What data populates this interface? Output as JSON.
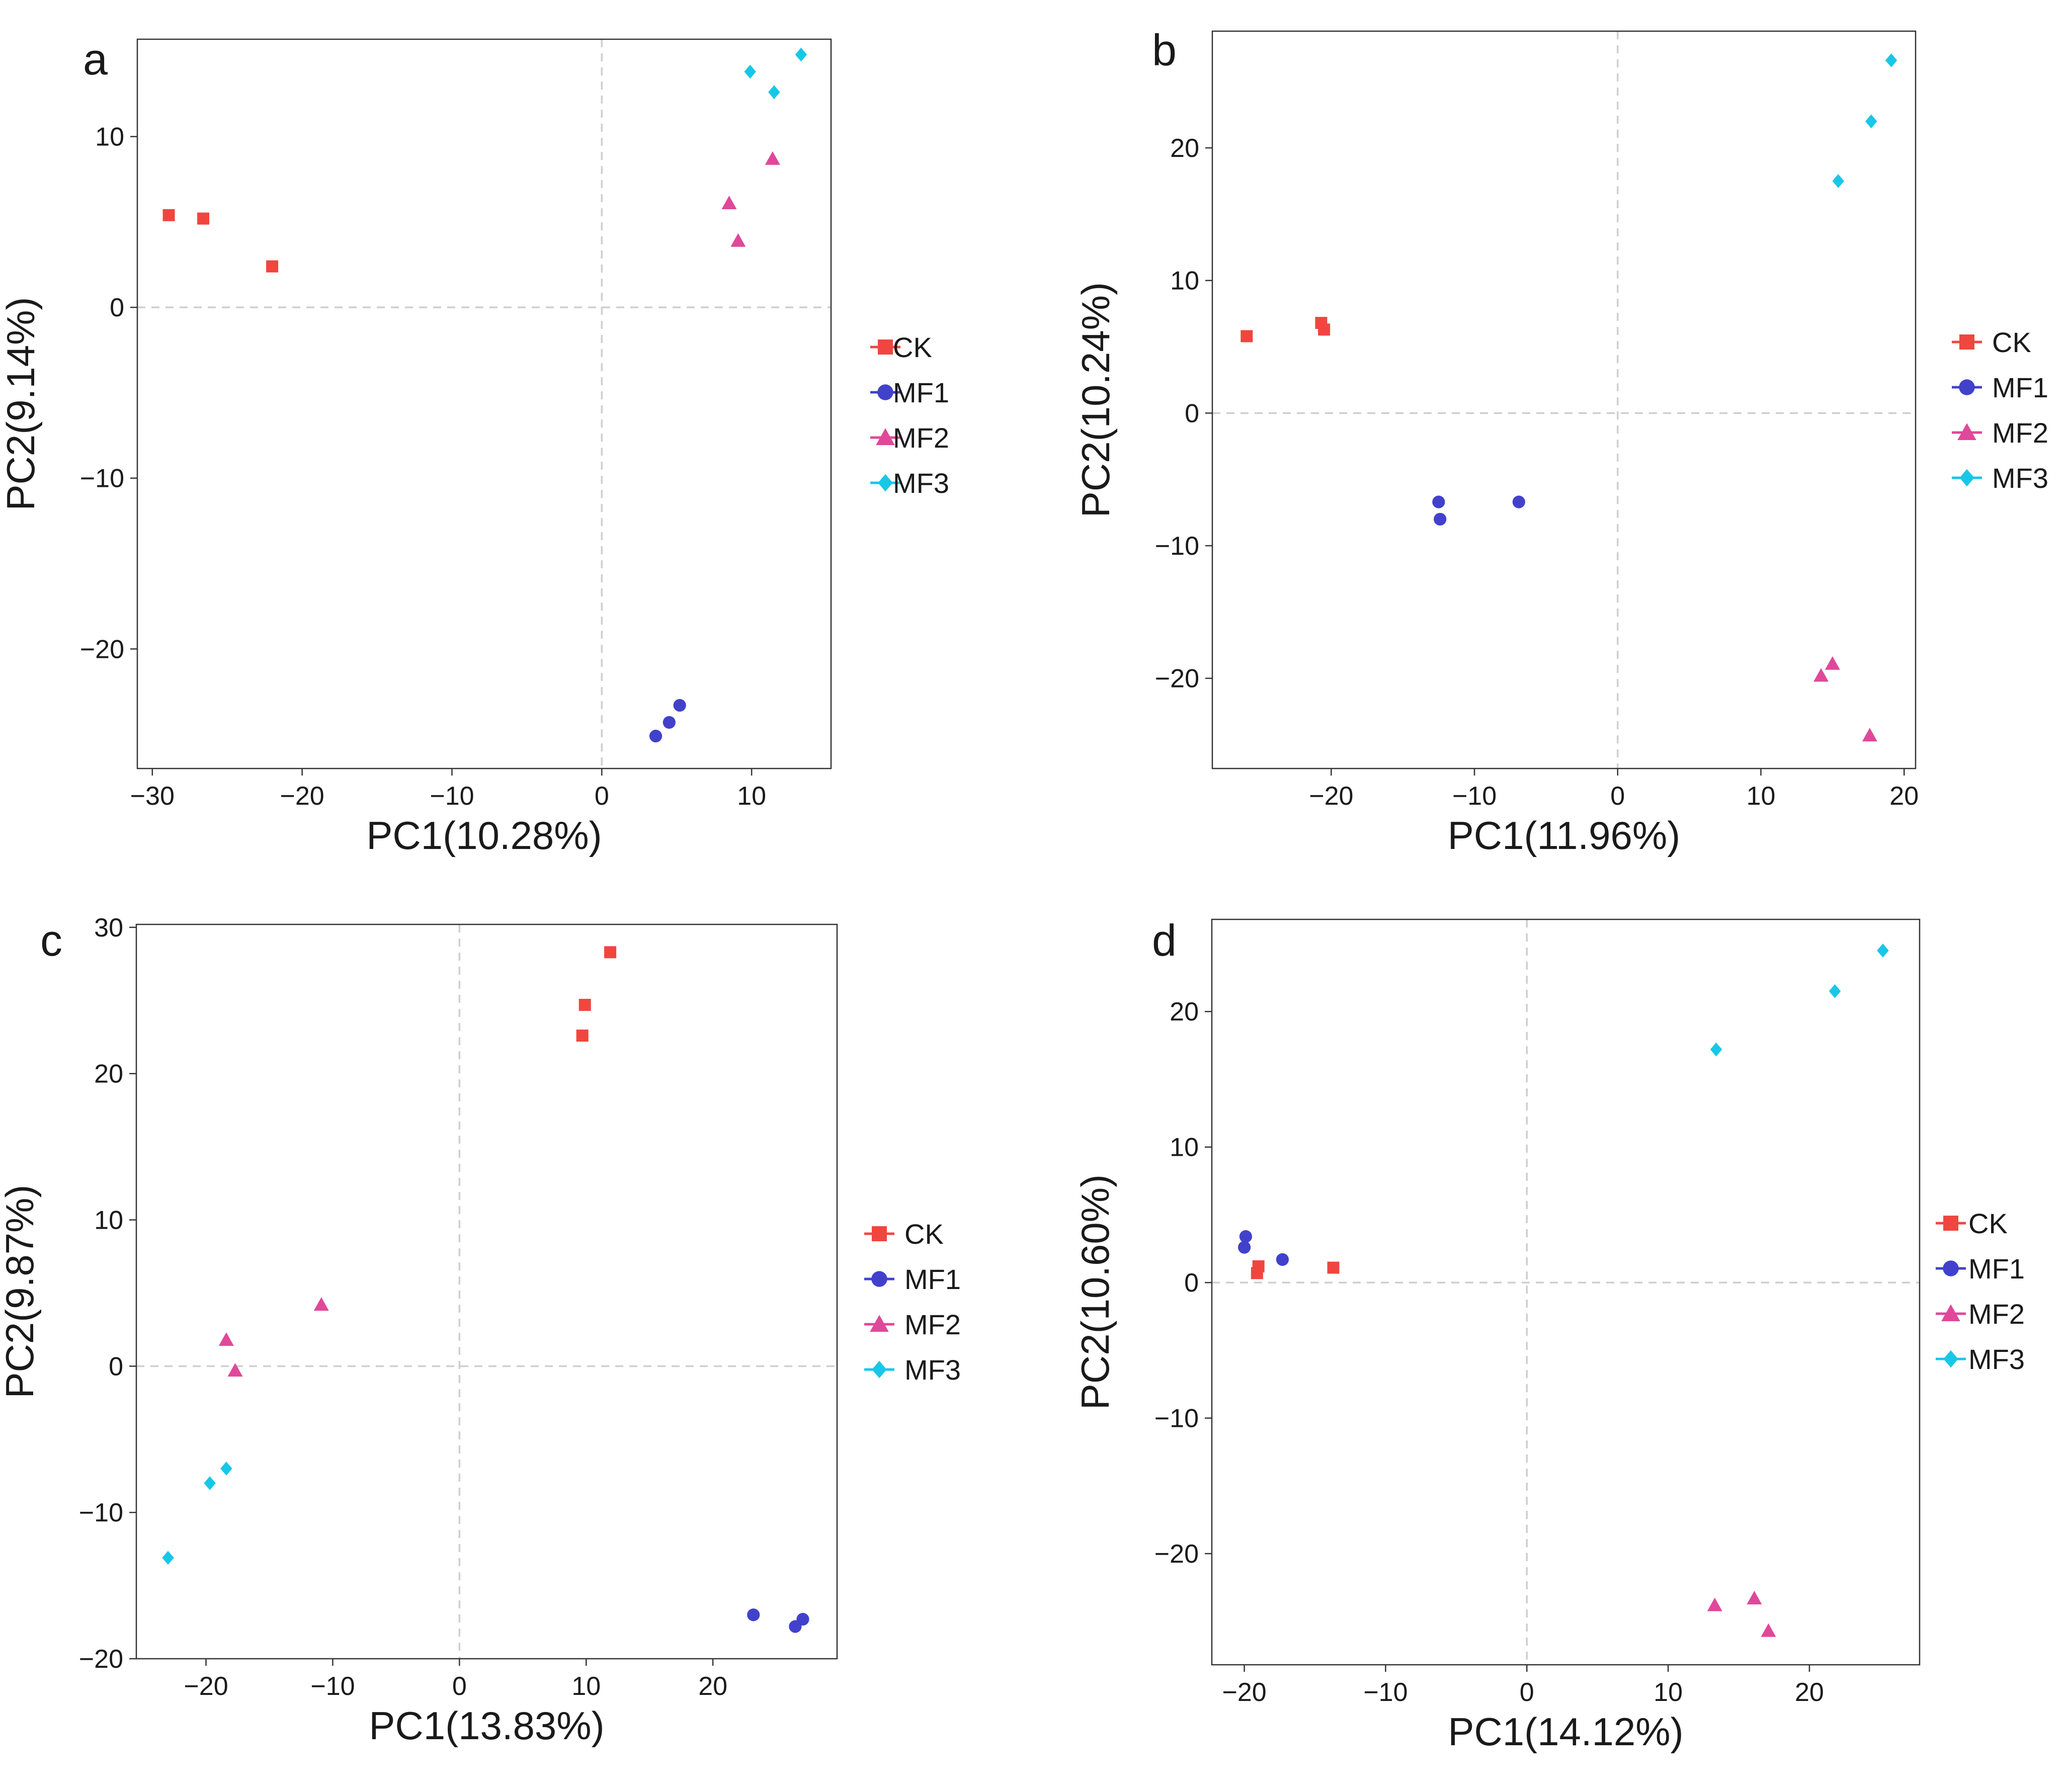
{
  "chart_data": [
    {
      "type": "scatter",
      "panel": "a",
      "xlabel": "PC1(10.28%)",
      "ylabel": "PC2(9.14%)",
      "xlim": [
        -31,
        15.3
      ],
      "ylim": [
        -27,
        15.7
      ],
      "xticks": [
        -30,
        -20,
        -10,
        0,
        10
      ],
      "yticks": [
        10,
        0,
        -10,
        -20
      ],
      "series": [
        {
          "name": "CK",
          "marker": "square",
          "color": "#f0463f",
          "points": [
            [
              -28.9,
              5.4
            ],
            [
              -26.6,
              5.2
            ],
            [
              -22.0,
              2.4
            ]
          ]
        },
        {
          "name": "MF1",
          "marker": "circle",
          "color": "#4141cc",
          "points": [
            [
              3.6,
              -25.1
            ],
            [
              4.5,
              -24.3
            ],
            [
              5.2,
              -23.3
            ]
          ]
        },
        {
          "name": "MF2",
          "marker": "triangle",
          "color": "#e0489a",
          "points": [
            [
              8.5,
              6.1
            ],
            [
              9.1,
              3.9
            ],
            [
              11.4,
              8.7
            ]
          ]
        },
        {
          "name": "MF3",
          "marker": "diamond",
          "color": "#17c7e8",
          "points": [
            [
              9.9,
              13.8
            ],
            [
              11.5,
              12.6
            ],
            [
              13.3,
              14.8
            ]
          ]
        }
      ]
    },
    {
      "type": "scatter",
      "panel": "b",
      "xlabel": "PC1(11.96%)",
      "ylabel": "PC2(10.24%)",
      "xlim": [
        -28.3,
        20.8
      ],
      "ylim": [
        -26.8,
        28.8
      ],
      "xticks": [
        -20,
        -10,
        0,
        10,
        20
      ],
      "yticks": [
        20,
        10,
        0,
        -10,
        -20
      ],
      "series": [
        {
          "name": "CK",
          "marker": "square",
          "color": "#f0463f",
          "points": [
            [
              -25.9,
              5.8
            ],
            [
              -20.7,
              6.8
            ],
            [
              -20.5,
              6.3
            ]
          ]
        },
        {
          "name": "MF1",
          "marker": "circle",
          "color": "#4141cc",
          "points": [
            [
              -12.5,
              -6.7
            ],
            [
              -12.4,
              -8.0
            ],
            [
              -6.9,
              -6.7
            ]
          ]
        },
        {
          "name": "MF2",
          "marker": "triangle",
          "color": "#e0489a",
          "points": [
            [
              14.2,
              -19.8
            ],
            [
              15.0,
              -18.9
            ],
            [
              17.6,
              -24.3
            ]
          ]
        },
        {
          "name": "MF3",
          "marker": "diamond",
          "color": "#17c7e8",
          "points": [
            [
              15.4,
              17.5
            ],
            [
              17.7,
              22.0
            ],
            [
              19.1,
              26.6
            ]
          ]
        }
      ]
    },
    {
      "type": "scatter",
      "panel": "c",
      "xlabel": "PC1(13.83%)",
      "ylabel": "PC2(9.87%)",
      "xlim": [
        -25.5,
        29.8
      ],
      "ylim": [
        -20,
        30.2
      ],
      "xticks": [
        -20,
        -10,
        0,
        10,
        20
      ],
      "yticks": [
        30,
        20,
        10,
        0,
        -10,
        -20
      ],
      "series": [
        {
          "name": "CK",
          "marker": "square",
          "color": "#f0463f",
          "points": [
            [
              9.7,
              22.6
            ],
            [
              9.9,
              24.7
            ],
            [
              11.9,
              28.3
            ]
          ]
        },
        {
          "name": "MF1",
          "marker": "circle",
          "color": "#4141cc",
          "points": [
            [
              23.2,
              -17.0
            ],
            [
              26.5,
              -17.8
            ],
            [
              27.1,
              -17.3
            ]
          ]
        },
        {
          "name": "MF2",
          "marker": "triangle",
          "color": "#e0489a",
          "points": [
            [
              -18.4,
              1.8
            ],
            [
              -17.7,
              -0.3
            ],
            [
              -10.9,
              4.2
            ]
          ]
        },
        {
          "name": "MF3",
          "marker": "diamond",
          "color": "#17c7e8",
          "points": [
            [
              -23.0,
              -13.1
            ],
            [
              -19.7,
              -8.0
            ],
            [
              -18.4,
              -7.0
            ]
          ]
        }
      ]
    },
    {
      "type": "scatter",
      "panel": "d",
      "xlabel": "PC1(14.12%)",
      "ylabel": "PC2(10.60%)",
      "xlim": [
        -22.3,
        27.8
      ],
      "ylim": [
        -28.2,
        26.8
      ],
      "xticks": [
        -20,
        -10,
        0,
        10,
        20
      ],
      "yticks": [
        20,
        10,
        0,
        -10,
        -20
      ],
      "series": [
        {
          "name": "CK",
          "marker": "square",
          "color": "#f0463f",
          "points": [
            [
              -19.1,
              0.7
            ],
            [
              -19.0,
              1.2
            ],
            [
              -13.7,
              1.1
            ]
          ]
        },
        {
          "name": "MF1",
          "marker": "circle",
          "color": "#4141cc",
          "points": [
            [
              -20.0,
              2.6
            ],
            [
              -19.9,
              3.4
            ],
            [
              -17.3,
              1.7
            ]
          ]
        },
        {
          "name": "MF2",
          "marker": "triangle",
          "color": "#e0489a",
          "points": [
            [
              13.3,
              -23.8
            ],
            [
              16.1,
              -23.3
            ],
            [
              17.1,
              -25.7
            ]
          ]
        },
        {
          "name": "MF3",
          "marker": "diamond",
          "color": "#17c7e8",
          "points": [
            [
              13.4,
              17.2
            ],
            [
              21.8,
              21.5
            ],
            [
              25.2,
              24.5
            ]
          ]
        }
      ]
    }
  ]
}
